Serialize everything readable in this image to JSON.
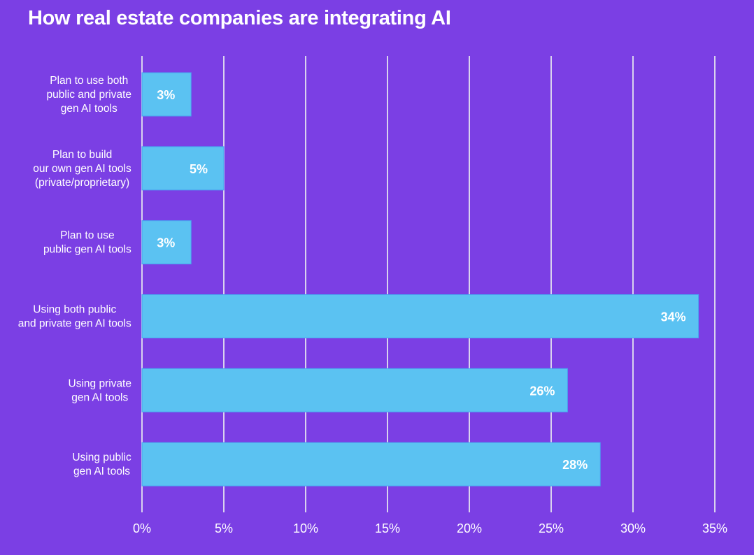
{
  "chart_data": {
    "type": "bar",
    "orientation": "horizontal",
    "title": "How real estate companies are integrating AI",
    "xlabel": "",
    "ylabel": "",
    "xlim": [
      0,
      35
    ],
    "x_ticks": [
      0,
      5,
      10,
      15,
      20,
      25,
      30,
      35
    ],
    "x_tick_labels": [
      "0%",
      "5%",
      "10%",
      "15%",
      "20%",
      "25%",
      "30%",
      "35%"
    ],
    "grid": "vertical",
    "categories": [
      [
        "Plan  to use both",
        "public and private",
        "gen AI tools"
      ],
      [
        "Plan to build",
        "our own gen AI tools",
        "(private/proprietary)"
      ],
      [
        "Plan to use",
        "public gen AI tools"
      ],
      [
        "Using both public",
        "and private gen AI tools"
      ],
      [
        "Using private",
        "gen AI tools"
      ],
      [
        "Using public",
        "gen AI tools"
      ]
    ],
    "values": [
      3,
      5,
      3,
      34,
      26,
      28
    ],
    "data_labels": [
      "3%",
      "5%",
      "3%",
      "34%",
      "26%",
      "28%"
    ],
    "colors": {
      "background": "#7b3fe4",
      "bar": "#5bc2f2",
      "bar_edge": "#4aa3f0",
      "grid": "#d9d2ee",
      "text": "#ffffff"
    }
  }
}
